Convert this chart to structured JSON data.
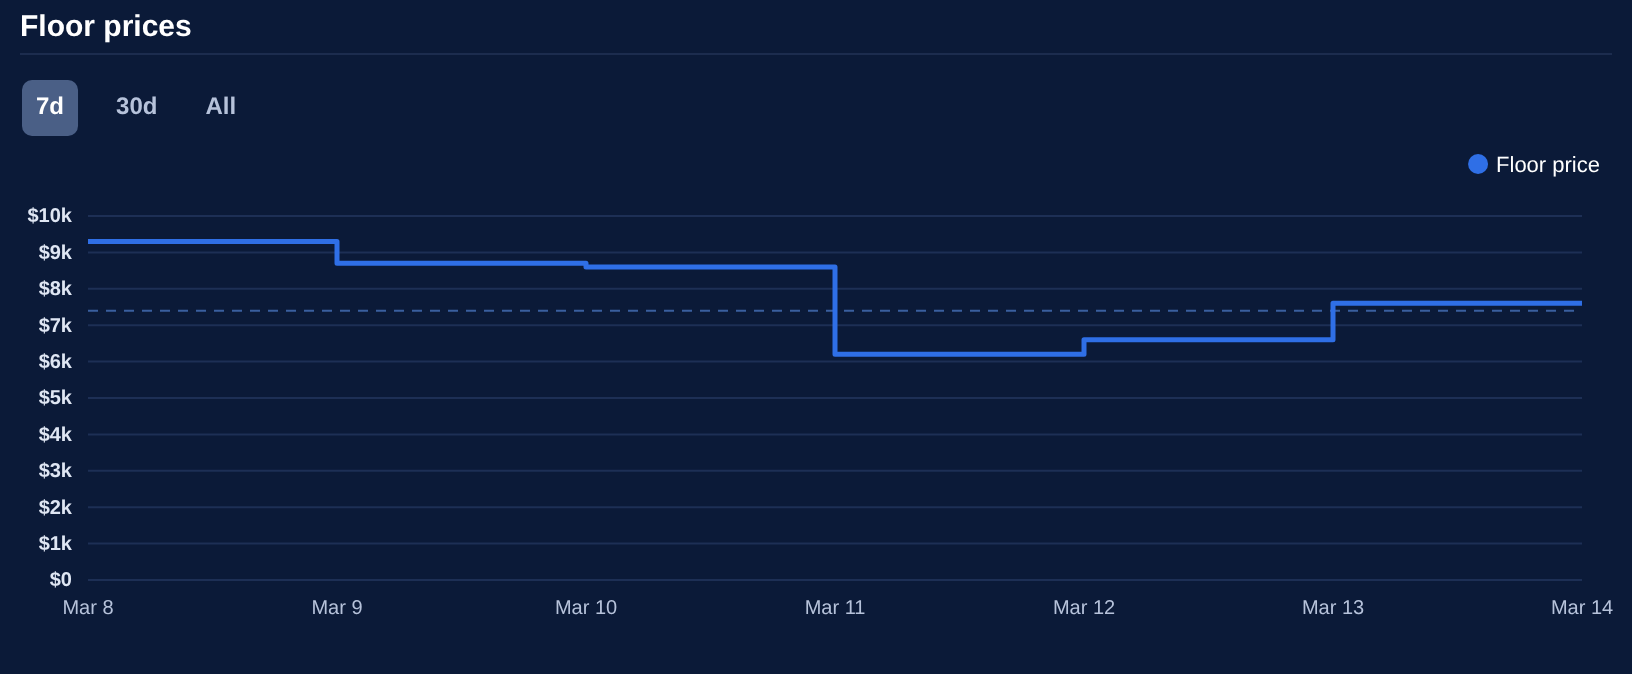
{
  "chart_data": {
    "type": "step",
    "title": "Floor prices",
    "annotations": [
      "7d",
      "30d",
      "All"
    ],
    "x": [
      "--03-08",
      "--03-09",
      "--03-10",
      "--03-11",
      "--03-12",
      "--03-13",
      "--03-14"
    ],
    "series": [
      {
        "name": "Floor price",
        "color": "#2f6fe6",
        "values": [
          9300,
          8700,
          8600,
          6200,
          6600,
          7600,
          7600
        ]
      }
    ],
    "xlim": [
      "--03-08",
      "--03-14"
    ],
    "xticks": [
      {
        "value": "--03-08",
        "label": "Mar 8"
      },
      {
        "value": "--03-09",
        "label": "Mar 9"
      },
      {
        "value": "--03-10",
        "label": "Mar 10"
      },
      {
        "value": "--03-11",
        "label": "Mar 11"
      },
      {
        "value": "--03-12",
        "label": "Mar 12"
      },
      {
        "value": "--03-13",
        "label": "Mar 13"
      },
      {
        "value": "--03-14",
        "label": "Mar 14"
      }
    ],
    "ylim": [
      0,
      10000
    ],
    "yticks": [
      {
        "value": 0,
        "label": "$0"
      },
      {
        "value": 1000,
        "label": "$1k"
      },
      {
        "value": 2000,
        "label": "$2k"
      },
      {
        "value": 3000,
        "label": "$3k"
      },
      {
        "value": 4000,
        "label": "$4k"
      },
      {
        "value": 5000,
        "label": "$5k"
      },
      {
        "value": 6000,
        "label": "$6k"
      },
      {
        "value": 7000,
        "label": "$7k"
      },
      {
        "value": 8000,
        "label": "$8k"
      },
      {
        "value": 9000,
        "label": "$9k"
      },
      {
        "value": 10000,
        "label": "$10k"
      }
    ],
    "ref_lines": [
      {
        "axis": "y",
        "value": 7400,
        "color": "#3a5f9e",
        "line_style": "dashed"
      }
    ],
    "grid": "y",
    "legend": "top right",
    "line_style": "solid"
  }
}
